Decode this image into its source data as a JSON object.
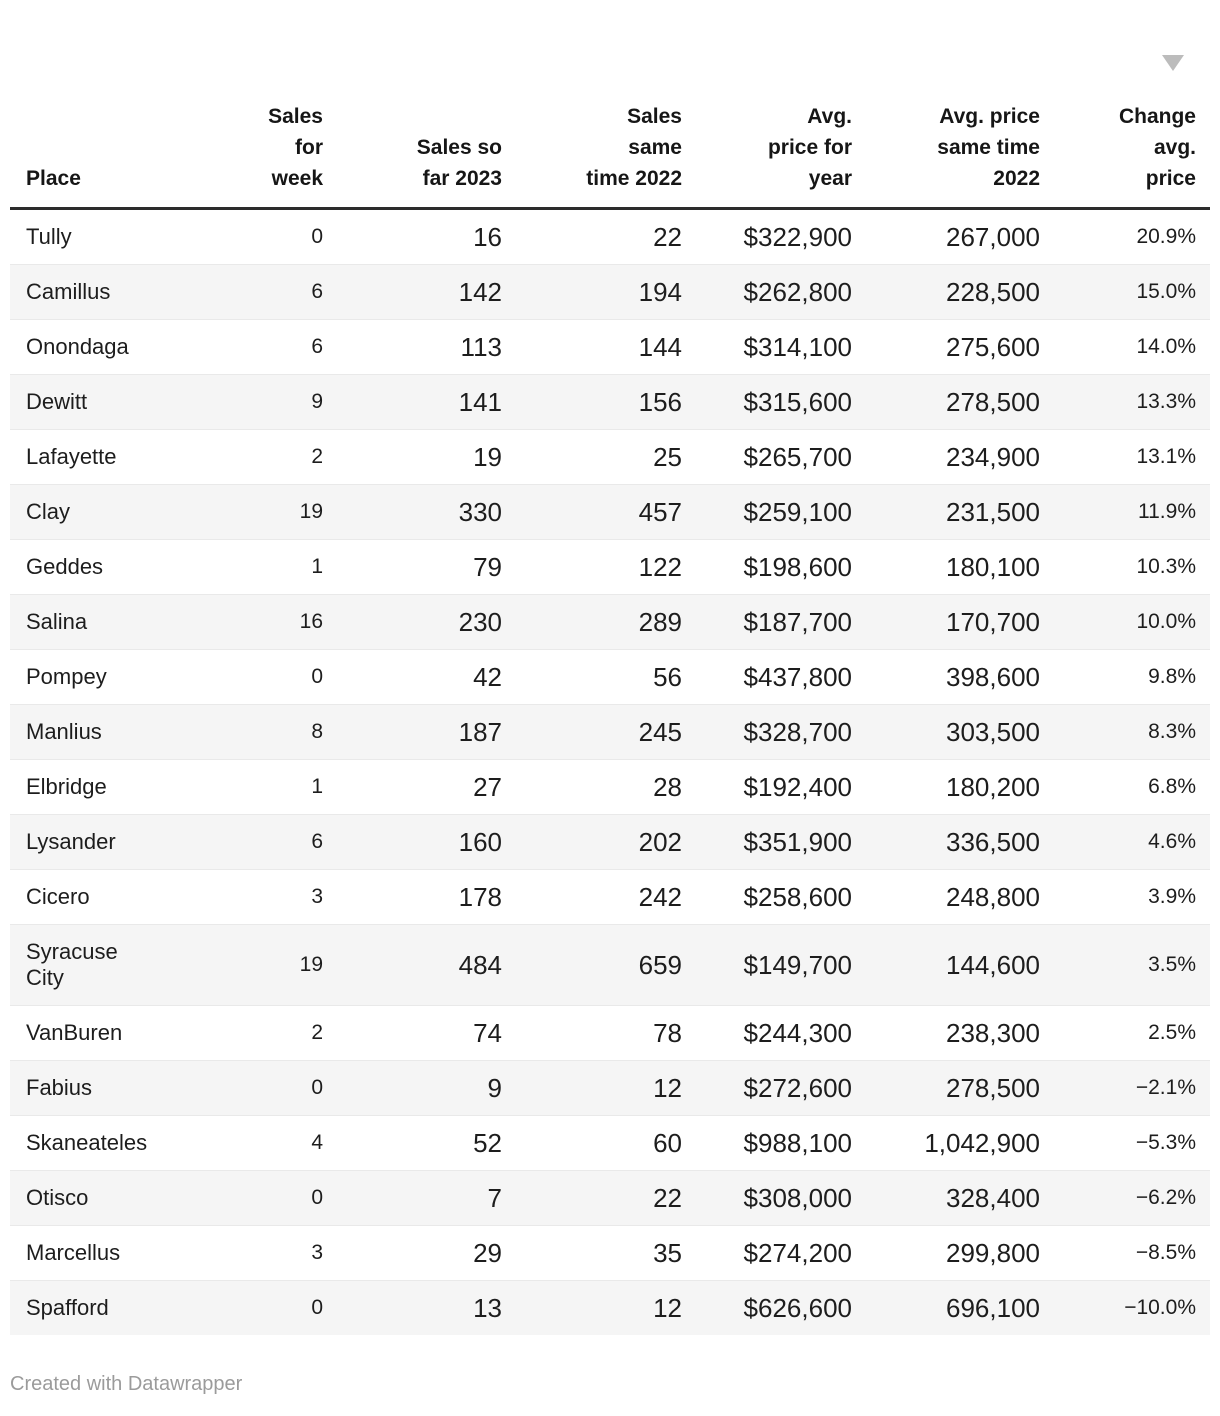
{
  "chart_data": {
    "type": "table",
    "columns": [
      "Place",
      "Sales for week",
      "Sales so far 2023",
      "Sales same time 2022",
      "Avg. price for year",
      "Avg. price same time 2022",
      "Change avg. price"
    ],
    "header_display": [
      "Place",
      "Sales\nfor\nweek",
      "Sales so\nfar 2023",
      "Sales\nsame\ntime 2022",
      "Avg.\nprice for\nyear",
      "Avg. price\nsame time\n2022",
      "Change\navg.\nprice"
    ],
    "sorted_by": "Change avg. price",
    "sort_direction": "descending",
    "rows": [
      [
        "Tully",
        "0",
        "16",
        "22",
        "$322,900",
        "267,000",
        "20.9%"
      ],
      [
        "Camillus",
        "6",
        "142",
        "194",
        "$262,800",
        "228,500",
        "15.0%"
      ],
      [
        "Onondaga",
        "6",
        "113",
        "144",
        "$314,100",
        "275,600",
        "14.0%"
      ],
      [
        "Dewitt",
        "9",
        "141",
        "156",
        "$315,600",
        "278,500",
        "13.3%"
      ],
      [
        "Lafayette",
        "2",
        "19",
        "25",
        "$265,700",
        "234,900",
        "13.1%"
      ],
      [
        "Clay",
        "19",
        "330",
        "457",
        "$259,100",
        "231,500",
        "11.9%"
      ],
      [
        "Geddes",
        "1",
        "79",
        "122",
        "$198,600",
        "180,100",
        "10.3%"
      ],
      [
        "Salina",
        "16",
        "230",
        "289",
        "$187,700",
        "170,700",
        "10.0%"
      ],
      [
        "Pompey",
        "0",
        "42",
        "56",
        "$437,800",
        "398,600",
        "9.8%"
      ],
      [
        "Manlius",
        "8",
        "187",
        "245",
        "$328,700",
        "303,500",
        "8.3%"
      ],
      [
        "Elbridge",
        "1",
        "27",
        "28",
        "$192,400",
        "180,200",
        "6.8%"
      ],
      [
        "Lysander",
        "6",
        "160",
        "202",
        "$351,900",
        "336,500",
        "4.6%"
      ],
      [
        "Cicero",
        "3",
        "178",
        "242",
        "$258,600",
        "248,800",
        "3.9%"
      ],
      [
        "Syracuse\nCity",
        "19",
        "484",
        "659",
        "$149,700",
        "144,600",
        "3.5%"
      ],
      [
        "VanBuren",
        "2",
        "74",
        "78",
        "$244,300",
        "238,300",
        "2.5%"
      ],
      [
        "Fabius",
        "0",
        "9",
        "12",
        "$272,600",
        "278,500",
        "−2.1%"
      ],
      [
        "Skaneateles",
        "4",
        "52",
        "60",
        "$988,100",
        "1,042,900",
        "−5.3%"
      ],
      [
        "Otisco",
        "0",
        "7",
        "22",
        "$308,000",
        "328,400",
        "−6.2%"
      ],
      [
        "Marcellus",
        "3",
        "29",
        "35",
        "$274,200",
        "299,800",
        "−8.5%"
      ],
      [
        "Spafford",
        "0",
        "13",
        "12",
        "$626,600",
        "696,100",
        "−10.0%"
      ]
    ]
  },
  "footer": {
    "attribution": "Created with Datawrapper"
  },
  "icons": {
    "sort_desc_icon": "▼"
  },
  "colors": {
    "text": "#1d1d1d",
    "header_rule": "#2c2c2c",
    "row_stripe": "#f5f5f5",
    "row_divider": "#e9e9e9",
    "sort_arrow": "#bcbcbc",
    "attribution_text": "#9b9b9b"
  }
}
